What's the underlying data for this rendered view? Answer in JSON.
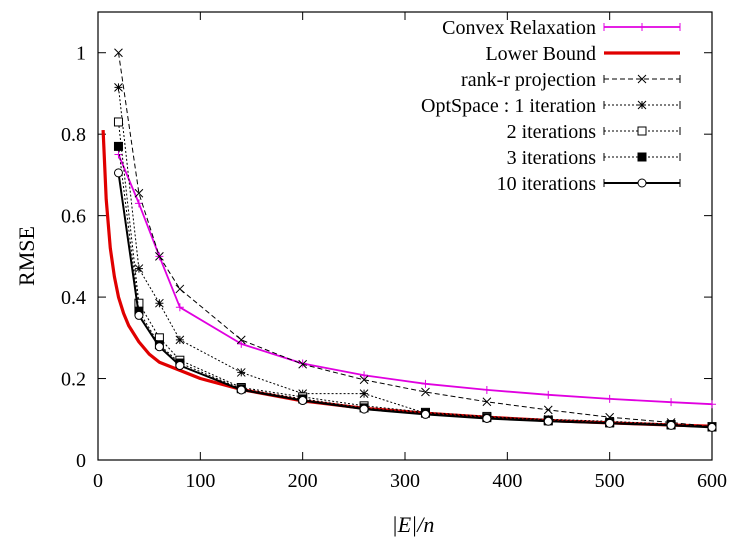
{
  "chart_data": {
    "type": "line",
    "title": "",
    "xlabel": "|E|/n",
    "ylabel": "RMSE",
    "xlim": [
      0,
      600
    ],
    "ylim": [
      0,
      1.1
    ],
    "xticks": [
      0,
      100,
      200,
      300,
      400,
      500,
      600
    ],
    "yticks": [
      0,
      0.2,
      0.4,
      0.6,
      0.8,
      1
    ],
    "xtick_labels": [
      "0",
      "100",
      "200",
      "300",
      "400",
      "500",
      "600"
    ],
    "ytick_labels": [
      "0",
      "0.2",
      "0.4",
      "0.6",
      "0.8",
      "1"
    ],
    "grid": false,
    "legend_position": "top-right",
    "series": [
      {
        "name": "Convex Relaxation",
        "color": "#e000e0",
        "dash": "solid",
        "marker": "plus",
        "x": [
          20,
          40,
          60,
          80,
          140,
          200,
          260,
          320,
          380,
          440,
          500,
          560,
          600
        ],
        "y": [
          0.75,
          0.63,
          0.5,
          0.375,
          0.285,
          0.237,
          0.208,
          0.187,
          0.172,
          0.16,
          0.15,
          0.142,
          0.137
        ]
      },
      {
        "name": "Lower Bound",
        "color": "#e00000",
        "dash": "solid",
        "marker": "none",
        "x": [
          5,
          8,
          12,
          16,
          20,
          25,
          30,
          40,
          50,
          60,
          80,
          100,
          140,
          200,
          260,
          320,
          380,
          440,
          500,
          560,
          600
        ],
        "y": [
          0.81,
          0.64,
          0.52,
          0.45,
          0.4,
          0.36,
          0.33,
          0.29,
          0.26,
          0.24,
          0.22,
          0.2,
          0.173,
          0.145,
          0.127,
          0.115,
          0.105,
          0.097,
          0.091,
          0.086,
          0.083
        ]
      },
      {
        "name": "rank-r projection",
        "color": "#000000",
        "dash": "dashed",
        "marker": "x",
        "x": [
          20,
          40,
          60,
          80,
          140,
          200,
          260,
          320,
          380,
          440,
          500,
          560,
          600
        ],
        "y": [
          1.0,
          0.655,
          0.5,
          0.42,
          0.295,
          0.235,
          0.197,
          0.167,
          0.143,
          0.123,
          0.105,
          0.092,
          0.082
        ]
      },
      {
        "name": "OptSpace : 1 iteration",
        "color": "#000000",
        "dash": "dotted",
        "marker": "star",
        "x": [
          20,
          40,
          60,
          80,
          140,
          200,
          260,
          320,
          380,
          440,
          500,
          560,
          600
        ],
        "y": [
          0.915,
          0.47,
          0.385,
          0.295,
          0.215,
          0.163,
          0.163,
          0.115,
          0.105,
          0.1,
          0.095,
          0.088,
          0.082
        ]
      },
      {
        "name": "2 iterations",
        "color": "#000000",
        "dash": "dotted",
        "marker": "open-square",
        "x": [
          20,
          40,
          60,
          80,
          140,
          200,
          260,
          320,
          380,
          440,
          500,
          560,
          600
        ],
        "y": [
          0.83,
          0.385,
          0.3,
          0.245,
          0.178,
          0.155,
          0.133,
          0.117,
          0.107,
          0.098,
          0.092,
          0.087,
          0.082
        ]
      },
      {
        "name": "3 iterations",
        "color": "#000000",
        "dash": "dotted",
        "marker": "filled-square",
        "x": [
          20,
          40,
          60,
          80,
          140,
          200,
          260,
          320,
          380,
          440,
          500,
          560,
          600
        ],
        "y": [
          0.77,
          0.365,
          0.283,
          0.238,
          0.175,
          0.15,
          0.128,
          0.115,
          0.104,
          0.096,
          0.091,
          0.086,
          0.081
        ]
      },
      {
        "name": "10 iterations",
        "color": "#000000",
        "dash": "solid",
        "marker": "circle",
        "x": [
          20,
          40,
          60,
          80,
          140,
          200,
          260,
          320,
          380,
          440,
          500,
          560,
          600
        ],
        "y": [
          0.705,
          0.355,
          0.278,
          0.232,
          0.172,
          0.146,
          0.125,
          0.112,
          0.102,
          0.095,
          0.09,
          0.085,
          0.08
        ]
      }
    ]
  }
}
